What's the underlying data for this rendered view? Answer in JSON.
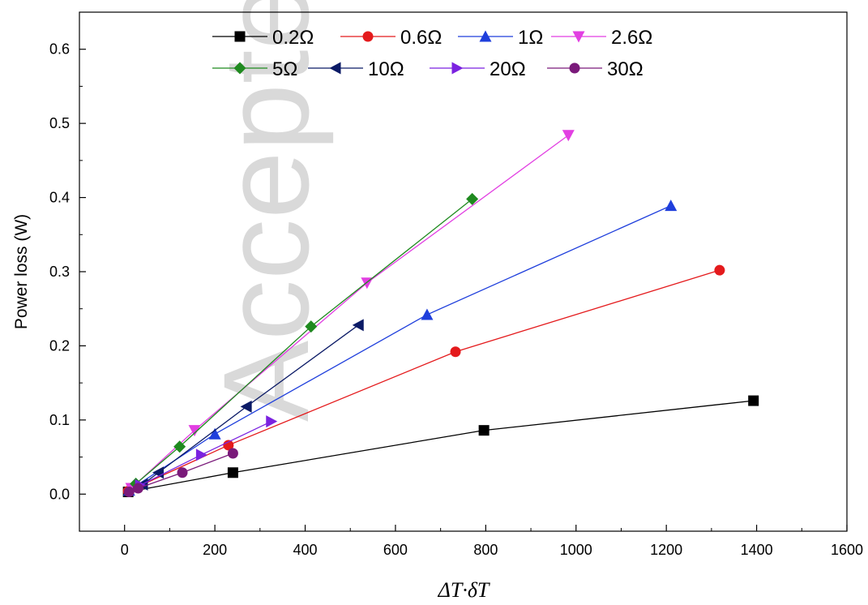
{
  "watermark": "Accepted Manuscript",
  "chart_data": {
    "type": "line",
    "title": "",
    "xlabel": "ΔT·δT",
    "ylabel": "Power loss (W)",
    "xlim": [
      -100,
      1600
    ],
    "ylim": [
      -0.05,
      0.65
    ],
    "xticks": [
      0,
      200,
      400,
      600,
      800,
      1000,
      1200,
      1400,
      1600
    ],
    "yticks": [
      0.0,
      0.1,
      0.2,
      0.3,
      0.4,
      0.5,
      0.6
    ],
    "grid": false,
    "legend": "top",
    "series": [
      {
        "name": "0.2Ω",
        "color": "#000000",
        "marker": "square",
        "x": [
          8,
          240,
          796,
          1393
        ],
        "y": [
          0.003,
          0.029,
          0.086,
          0.126
        ]
      },
      {
        "name": "0.6Ω",
        "color": "#e41a1c",
        "marker": "circle",
        "x": [
          8,
          230,
          733,
          1318
        ],
        "y": [
          0.004,
          0.066,
          0.192,
          0.302
        ]
      },
      {
        "name": "1Ω",
        "color": "#1f3fdc",
        "marker": "triangle-up",
        "x": [
          10,
          200,
          670,
          1210
        ],
        "y": [
          0.005,
          0.081,
          0.242,
          0.389
        ]
      },
      {
        "name": "2.6Ω",
        "color": "#e23fe2",
        "marker": "triangle-down",
        "x": [
          15,
          155,
          537,
          983
        ],
        "y": [
          0.008,
          0.086,
          0.285,
          0.484
        ]
      },
      {
        "name": "5Ω",
        "color": "#1f8a1f",
        "marker": "diamond",
        "x": [
          25,
          122,
          413,
          770
        ],
        "y": [
          0.014,
          0.064,
          0.226,
          0.398
        ]
      },
      {
        "name": "10Ω",
        "color": "#0b1a66",
        "marker": "triangle-left",
        "x": [
          40,
          75,
          270,
          518
        ],
        "y": [
          0.013,
          0.029,
          0.118,
          0.228
        ]
      },
      {
        "name": "20Ω",
        "color": "#7b22e0",
        "marker": "triangle-right",
        "x": [
          35,
          170,
          325
        ],
        "y": [
          0.012,
          0.053,
          0.098
        ]
      },
      {
        "name": "30Ω",
        "color": "#7a1a7a",
        "marker": "circle",
        "x": [
          10,
          30,
          128,
          240
        ],
        "y": [
          0.003,
          0.008,
          0.029,
          0.055
        ]
      }
    ]
  }
}
